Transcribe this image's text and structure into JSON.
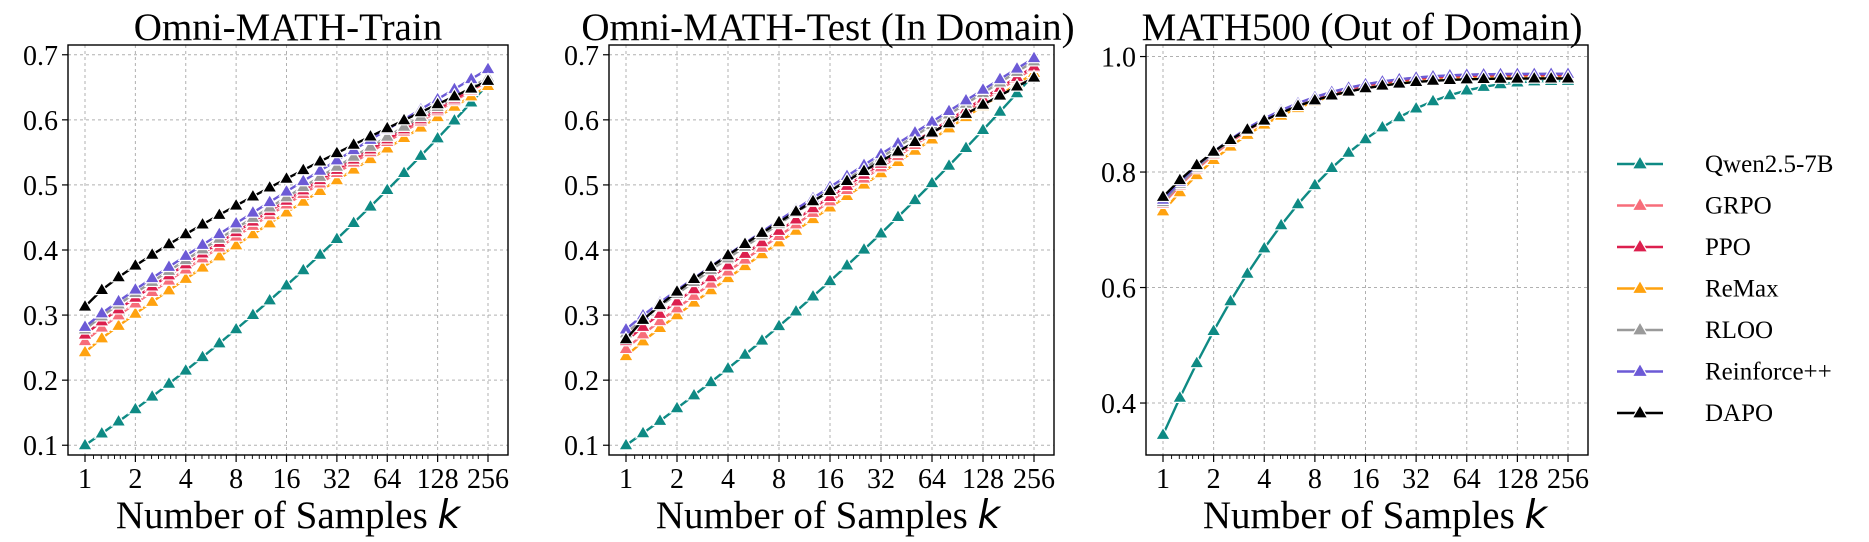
{
  "chart_data": [
    {
      "type": "line",
      "title": "Omni-MATH-Train",
      "xlabel": "Number of Samples",
      "xlabel_var": "k",
      "xscale": "log2",
      "ylim": [
        0.085,
        0.715
      ],
      "yticks": [
        0.1,
        0.2,
        0.3,
        0.4,
        0.5,
        0.6,
        0.7
      ],
      "ytick_labels": [
        "0.1",
        "0.2",
        "0.3",
        "0.4",
        "0.5",
        "0.6",
        "0.7"
      ],
      "xticks": [
        1,
        2,
        4,
        8,
        16,
        32,
        64,
        128,
        256
      ],
      "xtick_labels": [
        "1",
        "2",
        "4",
        "8",
        "16",
        "32",
        "64",
        "128",
        "256"
      ],
      "grid": true,
      "series": [
        {
          "name": "Qwen2.5-7B",
          "start": 0.1,
          "end": 0.655
        },
        {
          "name": "GRPO",
          "start": 0.26,
          "end": 0.66
        },
        {
          "name": "PPO",
          "start": 0.27,
          "end": 0.662
        },
        {
          "name": "ReMax",
          "start": 0.243,
          "end": 0.652
        },
        {
          "name": "RLOO",
          "start": 0.278,
          "end": 0.665
        },
        {
          "name": "Reinforce++",
          "start": 0.282,
          "end": 0.678
        },
        {
          "name": "DAPO",
          "start": 0.313,
          "end": 0.66
        }
      ]
    },
    {
      "type": "line",
      "title": "Omni-MATH-Test (In Domain)",
      "xlabel": "Number of Samples",
      "xlabel_var": "k",
      "xscale": "log2",
      "ylim": [
        0.085,
        0.715
      ],
      "yticks": [
        0.1,
        0.2,
        0.3,
        0.4,
        0.5,
        0.6,
        0.7
      ],
      "ytick_labels": [
        "0.1",
        "0.2",
        "0.3",
        "0.4",
        "0.5",
        "0.6",
        "0.7"
      ],
      "xticks": [
        1,
        2,
        4,
        8,
        16,
        32,
        64,
        128,
        256
      ],
      "xtick_labels": [
        "1",
        "2",
        "4",
        "8",
        "16",
        "32",
        "64",
        "128",
        "256"
      ],
      "grid": true,
      "series": [
        {
          "name": "Qwen2.5-7B",
          "start": 0.1,
          "end": 0.67
        },
        {
          "name": "GRPO",
          "start": 0.248,
          "end": 0.68
        },
        {
          "name": "PPO",
          "start": 0.26,
          "end": 0.682
        },
        {
          "name": "ReMax",
          "start": 0.237,
          "end": 0.672
        },
        {
          "name": "RLOO",
          "start": 0.272,
          "end": 0.69
        },
        {
          "name": "Reinforce++",
          "start": 0.278,
          "end": 0.695
        },
        {
          "name": "DAPO",
          "start": 0.263,
          "end": 0.665
        }
      ]
    },
    {
      "type": "line",
      "title": "MATH500 (Out of Domain)",
      "xlabel": "Number of Samples",
      "xlabel_var": "k",
      "xscale": "log2",
      "ylim": [
        0.31,
        1.02
      ],
      "yticks": [
        0.4,
        0.6,
        0.8,
        1.0
      ],
      "ytick_labels": [
        "0.4",
        "0.6",
        "0.8",
        "1.0"
      ],
      "xticks": [
        1,
        2,
        4,
        8,
        16,
        32,
        64,
        128,
        256
      ],
      "xtick_labels": [
        "1",
        "2",
        "4",
        "8",
        "16",
        "32",
        "64",
        "128",
        "256"
      ],
      "grid": true,
      "series": [
        {
          "name": "Qwen2.5-7B",
          "start": 0.345,
          "end": 0.958
        },
        {
          "name": "GRPO",
          "start": 0.745,
          "end": 0.968
        },
        {
          "name": "PPO",
          "start": 0.75,
          "end": 0.968
        },
        {
          "name": "ReMax",
          "start": 0.732,
          "end": 0.965
        },
        {
          "name": "RLOO",
          "start": 0.748,
          "end": 0.97
        },
        {
          "name": "Reinforce++",
          "start": 0.752,
          "end": 0.97
        },
        {
          "name": "DAPO",
          "start": 0.757,
          "end": 0.962
        }
      ]
    }
  ],
  "legend": {
    "placement": "right",
    "entries": [
      {
        "name": "Qwen2.5-7B",
        "color": "#0e8a84"
      },
      {
        "name": "GRPO",
        "color": "#f76d7a"
      },
      {
        "name": "PPO",
        "color": "#dc1f4e"
      },
      {
        "name": "ReMax",
        "color": "#ffa20f"
      },
      {
        "name": "RLOO",
        "color": "#9a9a9a"
      },
      {
        "name": "Reinforce++",
        "color": "#6c5ad6"
      },
      {
        "name": "DAPO",
        "color": "#000000"
      }
    ]
  }
}
